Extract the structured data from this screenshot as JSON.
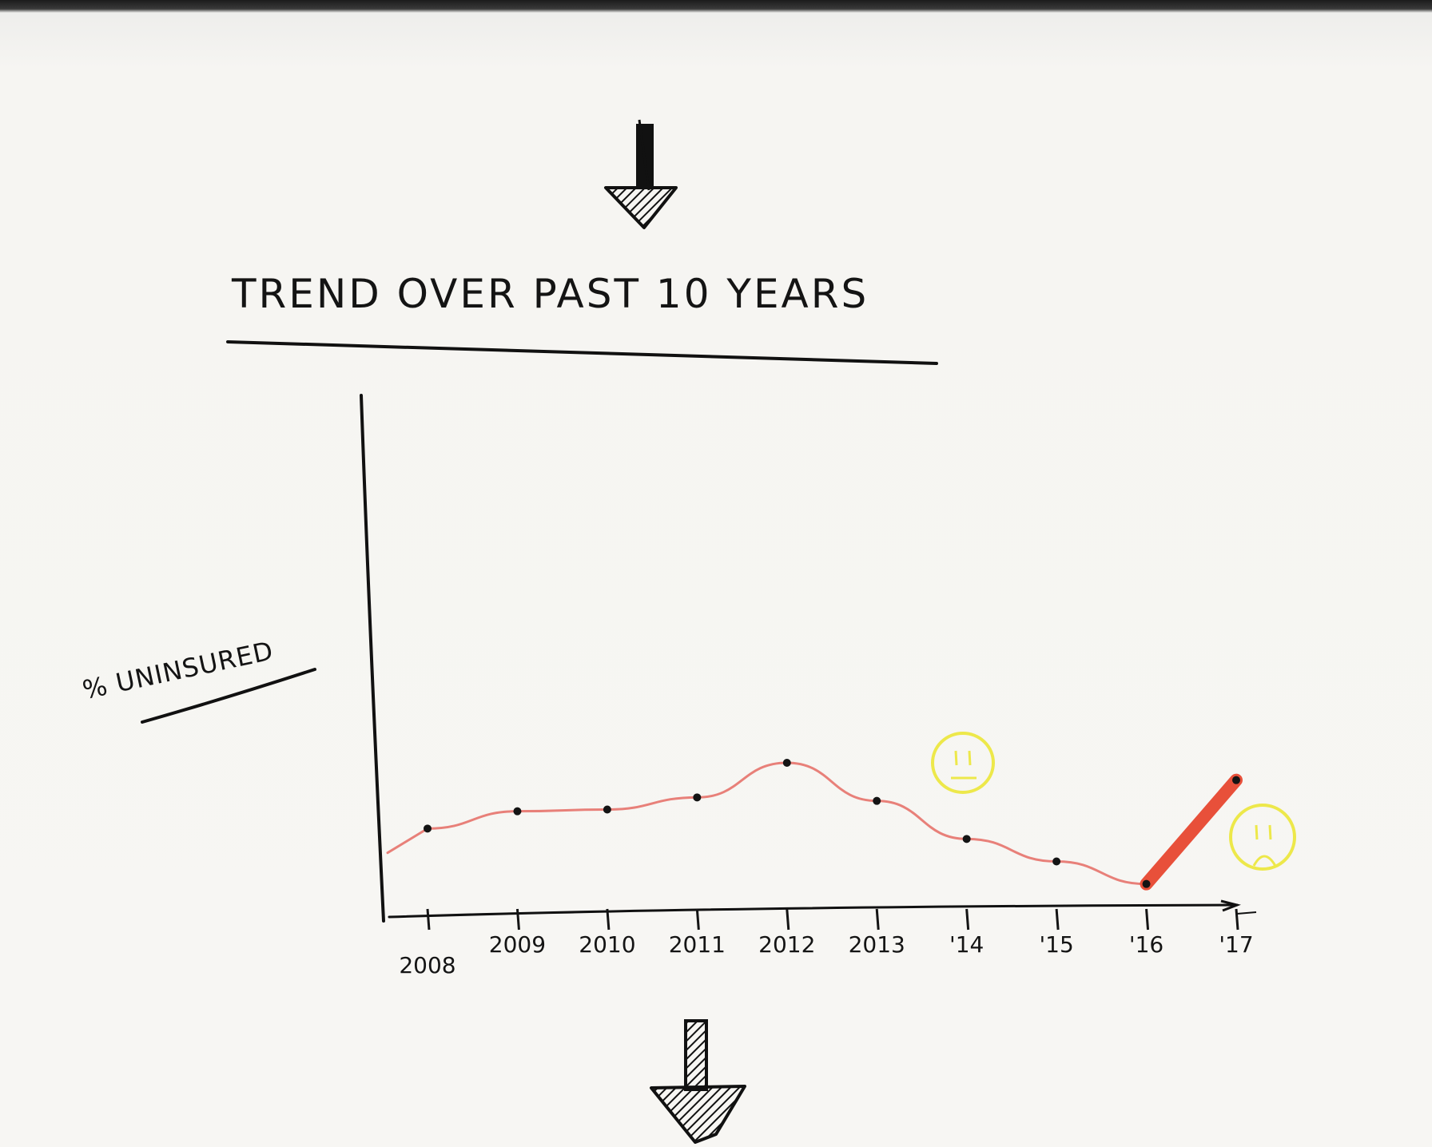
{
  "chart_data": {
    "type": "line",
    "title": "TREND OVER PAST 10 YEARS",
    "ylabel": "% UNINSURED",
    "xlabel": "",
    "categories": [
      "2008",
      "2009",
      "2010",
      "2011",
      "2012",
      "2013",
      "'14",
      "'15",
      "'16",
      "'17"
    ],
    "values": [
      5.2,
      6.2,
      6.3,
      7.0,
      9.0,
      6.8,
      4.6,
      3.3,
      2.0,
      8.0
    ],
    "ylim": [
      0,
      30
    ],
    "grid": false,
    "colors": {
      "line": "#e88079",
      "highlight_segment": "#e8503a",
      "face_outline": "#ede84a",
      "ink": "#141414"
    },
    "annotations": [
      {
        "icon": "neutral-face-icon",
        "near": "2013"
      },
      {
        "icon": "sad-face-icon",
        "near": "'17"
      }
    ],
    "arrows": [
      "down-arrow-icon",
      "down-arrow-icon"
    ]
  }
}
